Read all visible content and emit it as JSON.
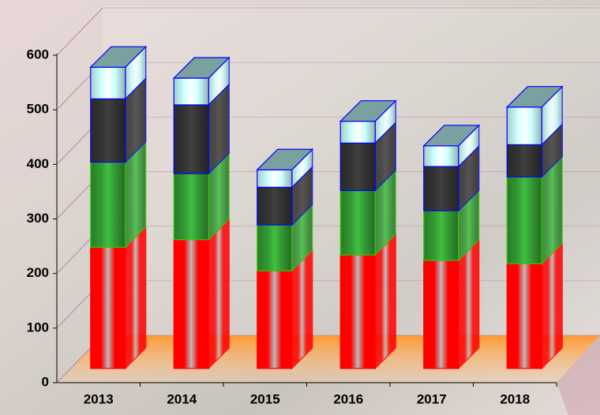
{
  "chart_data": {
    "type": "bar",
    "stacked": true,
    "categories": [
      "2013",
      "2014",
      "2015",
      "2016",
      "2017",
      "2018"
    ],
    "series": [
      {
        "color": "#ff0000",
        "values": [
          222,
          236,
          179,
          208,
          198,
          192
        ]
      },
      {
        "color": "#339933",
        "values": [
          156,
          121,
          84,
          118,
          91,
          159
        ]
      },
      {
        "color": "#333333",
        "values": [
          116,
          126,
          69,
          87,
          81,
          59
        ]
      },
      {
        "color": "#ccffff",
        "values": [
          58,
          49,
          32,
          40,
          38,
          69
        ]
      }
    ],
    "ylim": [
      0,
      600
    ],
    "yticks": [
      0,
      100,
      200,
      300,
      400,
      500,
      600
    ],
    "grid": true
  }
}
